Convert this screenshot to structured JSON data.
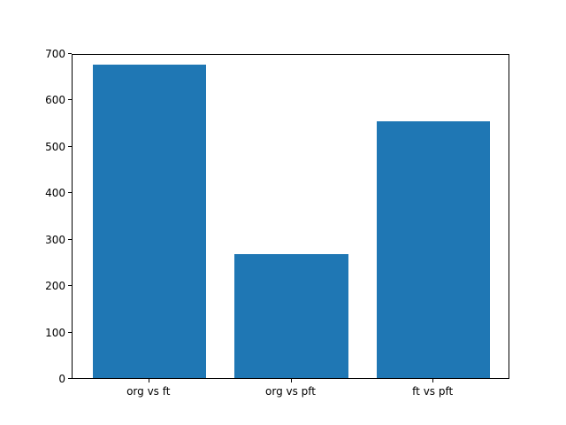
{
  "chart_data": {
    "type": "bar",
    "categories": [
      "org vs ft",
      "org vs pft",
      "ft vs pft"
    ],
    "values": [
      675,
      268,
      554
    ],
    "title": "",
    "xlabel": "",
    "ylabel": "",
    "ylim": [
      0,
      700
    ],
    "yticks": [
      0,
      100,
      200,
      300,
      400,
      500,
      600,
      700
    ],
    "bar_color": "#1f77b4",
    "background_color": "#ffffff",
    "axis_color": "#000000",
    "grid": false,
    "legend": null
  }
}
